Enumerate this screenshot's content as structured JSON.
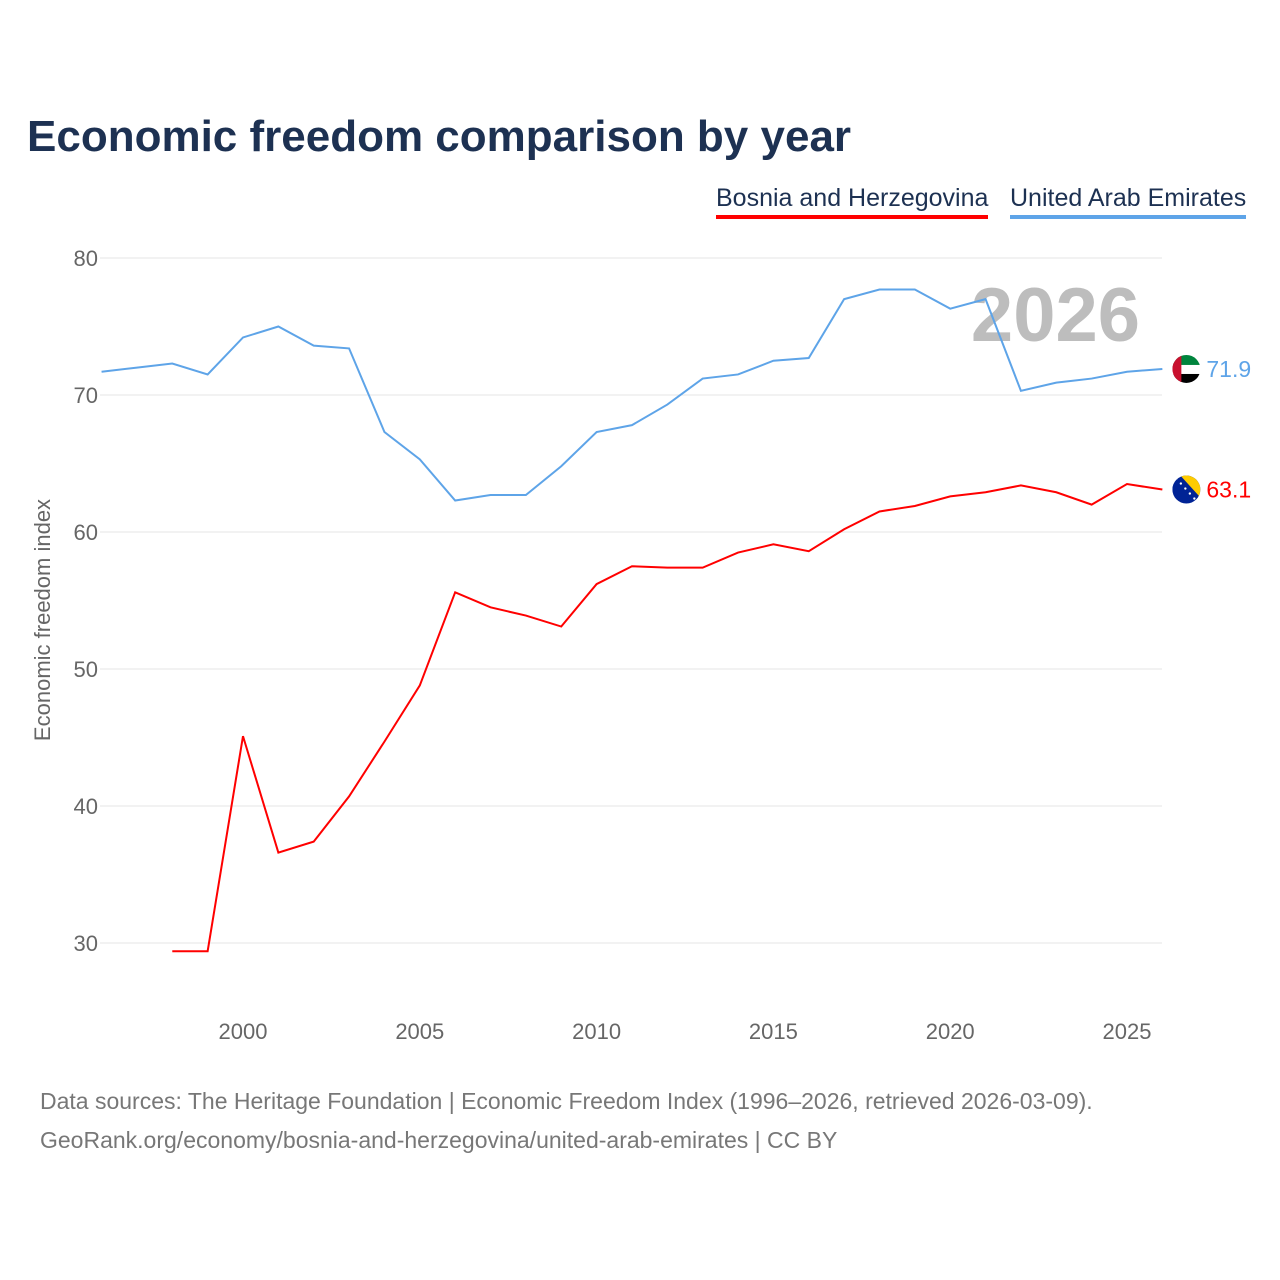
{
  "chart_data": {
    "type": "line",
    "title": "Economic freedom comparison by year",
    "ylabel": "Economic freedom index",
    "xlabel": "",
    "xlim": [
      1996,
      2026
    ],
    "ylim": [
      25,
      80
    ],
    "x_ticks": [
      "2000",
      "2005",
      "2010",
      "2015",
      "2020",
      "2025"
    ],
    "y_ticks": [
      "30",
      "40",
      "50",
      "60",
      "70",
      "80"
    ],
    "year_label": "2026",
    "legend": [
      "Bosnia and Herzegovina",
      "United Arab Emirates"
    ],
    "legend_placement": "top-right",
    "series": [
      {
        "name": "Bosnia and Herzegovina",
        "color": "#ff0000",
        "end_label": "63.1",
        "flag": "bosnia-flag",
        "x": [
          1998,
          1999,
          2000,
          2001,
          2002,
          2003,
          2004,
          2005,
          2006,
          2007,
          2008,
          2009,
          2010,
          2011,
          2012,
          2013,
          2014,
          2015,
          2016,
          2017,
          2018,
          2019,
          2020,
          2021,
          2022,
          2023,
          2024,
          2025,
          2026
        ],
        "values": [
          29.4,
          29.4,
          45.1,
          36.6,
          37.4,
          40.7,
          44.7,
          48.8,
          55.6,
          54.5,
          53.9,
          53.1,
          56.2,
          57.5,
          57.4,
          57.4,
          58.5,
          59.1,
          58.6,
          60.2,
          61.5,
          61.9,
          62.6,
          62.9,
          63.4,
          62.9,
          62.0,
          63.5,
          63.1
        ]
      },
      {
        "name": "United Arab Emirates",
        "color": "#5ea4e8",
        "end_label": "71.9",
        "flag": "uae-flag",
        "x": [
          1996,
          1997,
          1998,
          1999,
          2000,
          2001,
          2002,
          2003,
          2004,
          2005,
          2006,
          2007,
          2008,
          2009,
          2010,
          2011,
          2012,
          2013,
          2014,
          2015,
          2016,
          2017,
          2018,
          2019,
          2020,
          2021,
          2022,
          2023,
          2024,
          2025,
          2026
        ],
        "values": [
          71.7,
          72.0,
          72.3,
          71.5,
          74.2,
          75.0,
          73.6,
          73.4,
          67.3,
          65.3,
          62.3,
          62.7,
          62.7,
          64.8,
          67.3,
          67.8,
          69.3,
          71.2,
          71.5,
          72.5,
          72.7,
          77.0,
          77.7,
          77.7,
          76.3,
          77.0,
          70.3,
          70.9,
          71.2,
          71.7,
          71.9
        ]
      }
    ]
  },
  "footer": {
    "line1": "Data sources: The Heritage Foundation | Economic Freedom Index (1996–2026, retrieved 2026-03-09).",
    "line2": "GeoRank.org/economy/bosnia-and-herzegovina/united-arab-emirates | CC BY"
  }
}
